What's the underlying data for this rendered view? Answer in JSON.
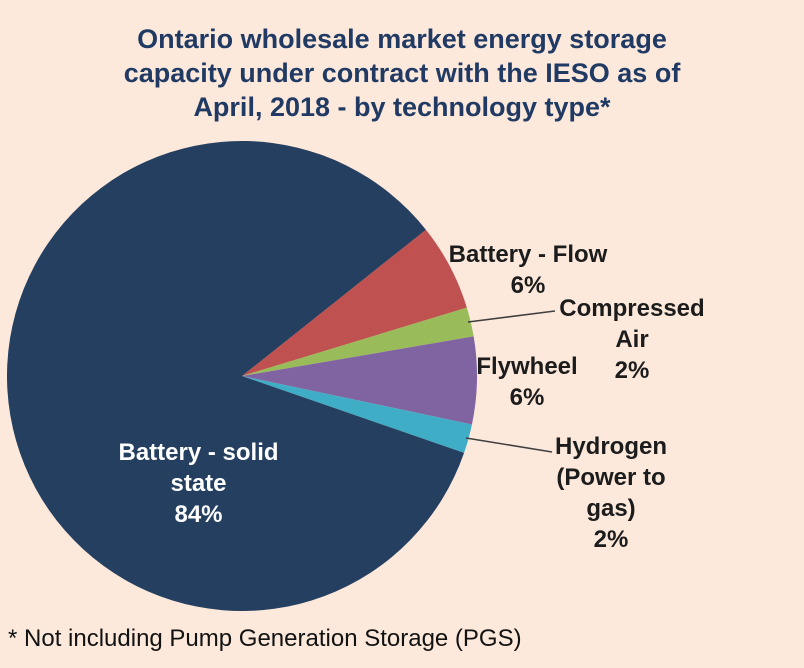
{
  "page": {
    "background_color": "#fce9dc"
  },
  "chart_data": {
    "type": "pie",
    "title": "Ontario wholesale market energy storage\ncapacity under contract with the IESO as of\nApril, 2018 - by technology type*",
    "title_color": "#203a63",
    "footnote": "* Not including Pump Generation Storage (PGS)",
    "legend_position": "none",
    "start_angle_deg": 38.5,
    "direction": "clockwise",
    "label_style": "outside-callouts, largest slice labeled inside",
    "leader_line_color": "#3f3f3f",
    "slices": [
      {
        "label": "Battery - Flow",
        "value_pct": 6,
        "pct_label": "6%",
        "color": "#bf5150",
        "label_position": "outside"
      },
      {
        "label": "Compressed Air",
        "value_pct": 2,
        "pct_label": "2%",
        "color": "#9abb59",
        "label_position": "outside",
        "has_leader_line": true
      },
      {
        "label": "Flywheel",
        "value_pct": 6,
        "pct_label": "6%",
        "color": "#8064a2",
        "label_position": "outside"
      },
      {
        "label": "Hydrogen (Power to gas)",
        "value_pct": 2,
        "pct_label": "2%",
        "color": "#3fadc5",
        "label_position": "outside",
        "has_leader_line": true
      },
      {
        "label": "Battery - solid state",
        "value_pct": 84,
        "pct_label": "84%",
        "color": "#243f5f",
        "label_position": "inside",
        "label_color": "#ffffff"
      }
    ]
  }
}
